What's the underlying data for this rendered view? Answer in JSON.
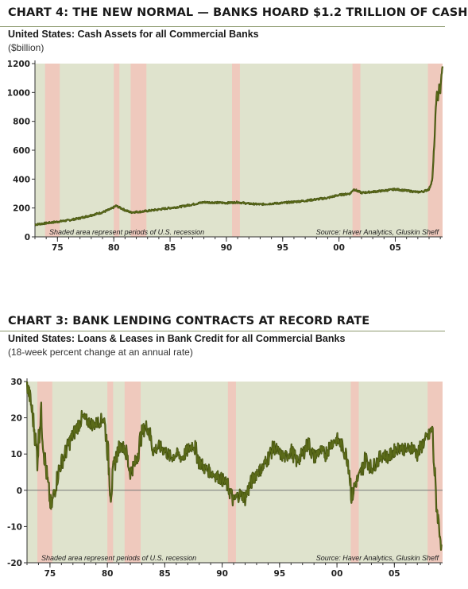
{
  "charts": [
    {
      "chart_title": "CHART 4: THE NEW NORMAL — BANKS HOARD $1.2 TRILLION OF CASH",
      "subtitle": "United States: Cash Assets for all Commercial Banks",
      "unit": "($billion)",
      "note_left": "Shaded area represent periods of U.S. recession",
      "note_right": "Source: Haver Analytics, Gluskin Sheff",
      "x_ticks": [
        "75",
        "80",
        "85",
        "90",
        "95",
        "00",
        "05"
      ],
      "y_ticks": [
        "0",
        "200",
        "400",
        "600",
        "800",
        "1000",
        "1200"
      ]
    },
    {
      "chart_title": "CHART 3: BANK LENDING CONTRACTS AT RECORD RATE",
      "subtitle": "United States: Loans & Leases in Bank Credit for all Commercial Banks",
      "unit": "(18-week percent change at an annual rate)",
      "note_left": "Shaded area represent periods of U.S. recession",
      "note_right": "Source: Haver Analytics, Gluskin Sheff",
      "x_ticks": [
        "75",
        "80",
        "85",
        "90",
        "95",
        "00",
        "05"
      ],
      "y_ticks": [
        "-20",
        "-10",
        "0",
        "10",
        "20",
        "30"
      ]
    }
  ],
  "colors": {
    "plot_bg": "#dfe3cd",
    "recession": "#efc9bd",
    "line": "#5b6b19",
    "line_dark": "#3d4a0c",
    "rule": "#8d9a6e"
  },
  "chart_data": [
    {
      "type": "line",
      "title": "CHART 4: THE NEW NORMAL — BANKS HOARD $1.2 TRILLION OF CASH",
      "ylabel": "($billion)",
      "xlim": [
        1973.0,
        2009.2
      ],
      "ylim": [
        0,
        1200
      ],
      "x_ticks": [
        1975,
        1980,
        1985,
        1990,
        1995,
        2000,
        2005
      ],
      "y_ticks": [
        0,
        200,
        400,
        600,
        800,
        1000,
        1200
      ],
      "recessions": [
        [
          1973.9,
          1975.2
        ],
        [
          1980.0,
          1980.5
        ],
        [
          1981.5,
          1982.9
        ],
        [
          1990.5,
          1991.2
        ],
        [
          2001.2,
          2001.9
        ],
        [
          2007.9,
          2009.2
        ]
      ],
      "series": [
        {
          "x": [
            1973.0,
            1974.0,
            1975.0,
            1976.0,
            1977.0,
            1978.0,
            1979.0,
            1979.8,
            1980.2,
            1980.6,
            1981.0,
            1981.5,
            1982.5,
            1984.0,
            1986.0,
            1987.0,
            1988.0,
            1990.0,
            1991.0,
            1992.0,
            1993.0,
            1995.0,
            1997.0,
            1999.0,
            2000.0,
            2001.0,
            2001.3,
            2002.0,
            2004.0,
            2005.0,
            2006.0,
            2007.0,
            2007.5,
            2008.0,
            2008.3,
            2008.5,
            2008.6,
            2008.7,
            2008.8,
            2008.9,
            2009.0,
            2009.1,
            2009.2
          ],
          "y": [
            85,
            95,
            105,
            115,
            130,
            150,
            170,
            195,
            215,
            200,
            185,
            170,
            175,
            190,
            210,
            225,
            240,
            235,
            240,
            230,
            225,
            235,
            250,
            270,
            290,
            300,
            330,
            305,
            320,
            330,
            320,
            310,
            315,
            330,
            400,
            700,
            900,
            1000,
            950,
            1050,
            1000,
            1120,
            1180
          ]
        }
      ]
    },
    {
      "type": "line",
      "title": "CHART 3: BANK LENDING CONTRACTS AT RECORD RATE",
      "ylabel": "(18-week percent change at an annual rate)",
      "xlim": [
        1973.0,
        2009.2
      ],
      "ylim": [
        -20,
        30
      ],
      "x_ticks": [
        1975,
        1980,
        1985,
        1990,
        1995,
        2000,
        2005
      ],
      "y_ticks": [
        -20,
        -10,
        0,
        10,
        20,
        30
      ],
      "recessions": [
        [
          1973.9,
          1975.2
        ],
        [
          1980.0,
          1980.5
        ],
        [
          1981.5,
          1982.9
        ],
        [
          1990.5,
          1991.2
        ],
        [
          2001.2,
          2001.9
        ],
        [
          2007.9,
          2009.2
        ]
      ],
      "series": [
        {
          "x": [
            1973.0,
            1973.3,
            1973.6,
            1973.9,
            1974.2,
            1974.5,
            1974.8,
            1975.1,
            1975.4,
            1975.8,
            1976.3,
            1976.8,
            1977.3,
            1977.8,
            1978.3,
            1978.8,
            1979.3,
            1979.7,
            1980.0,
            1980.3,
            1980.6,
            1981.0,
            1981.5,
            1982.0,
            1982.5,
            1983.0,
            1983.5,
            1984.0,
            1984.5,
            1985.0,
            1985.5,
            1986.0,
            1986.5,
            1987.0,
            1987.5,
            1988.0,
            1988.5,
            1989.0,
            1989.5,
            1990.0,
            1990.5,
            1991.0,
            1991.5,
            1992.0,
            1992.5,
            1993.0,
            1993.5,
            1994.0,
            1994.5,
            1995.0,
            1995.5,
            1996.0,
            1996.5,
            1997.0,
            1997.5,
            1998.0,
            1998.5,
            1999.0,
            1999.5,
            2000.0,
            2000.5,
            2001.0,
            2001.3,
            2001.6,
            2002.0,
            2002.5,
            2003.0,
            2003.5,
            2004.0,
            2004.5,
            2005.0,
            2005.5,
            2006.0,
            2006.5,
            2007.0,
            2007.5,
            2008.0,
            2008.3,
            2008.5,
            2008.7,
            2008.9,
            2009.1
          ],
          "y": [
            29,
            25,
            18,
            9,
            22,
            10,
            2,
            -5,
            0,
            6,
            10,
            14,
            17,
            20,
            19,
            18,
            19,
            20,
            12,
            -1,
            7,
            12,
            12,
            5,
            8,
            16,
            18,
            11,
            12,
            11,
            9,
            10,
            9,
            11,
            13,
            8,
            6,
            5,
            4,
            3,
            1,
            -3,
            -1,
            -2,
            2,
            5,
            6,
            9,
            12,
            10,
            9,
            11,
            8,
            10,
            13,
            9,
            11,
            10,
            13,
            14,
            12,
            8,
            -2,
            2,
            4,
            9,
            6,
            8,
            10,
            9,
            11,
            12,
            11,
            12,
            10,
            13,
            15,
            17,
            5,
            -5,
            -10,
            -15
          ]
        }
      ]
    }
  ]
}
